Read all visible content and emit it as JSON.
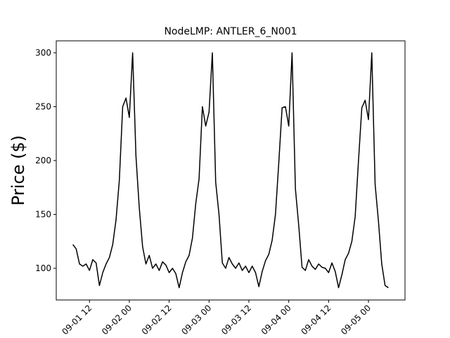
{
  "chart_data": {
    "type": "line",
    "title": "NodeLMP: ANTLER_6_N001",
    "y_label": "Price ($)",
    "x": [
      "09-01 07",
      "09-01 08",
      "09-01 09",
      "09-01 10",
      "09-01 11",
      "09-01 12",
      "09-01 13",
      "09-01 14",
      "09-01 15",
      "09-01 16",
      "09-01 17",
      "09-01 18",
      "09-01 19",
      "09-01 20",
      "09-01 21",
      "09-01 22",
      "09-01 23",
      "09-02 00",
      "09-02 01",
      "09-02 02",
      "09-02 03",
      "09-02 04",
      "09-02 05",
      "09-02 06",
      "09-02 07",
      "09-02 08",
      "09-02 09",
      "09-02 10",
      "09-02 11",
      "09-02 12",
      "09-02 13",
      "09-02 14",
      "09-02 15",
      "09-02 16",
      "09-02 17",
      "09-02 18",
      "09-02 19",
      "09-02 20",
      "09-02 21",
      "09-02 22",
      "09-02 23",
      "09-03 00",
      "09-03 01",
      "09-03 02",
      "09-03 03",
      "09-03 04",
      "09-03 05",
      "09-03 06",
      "09-03 07",
      "09-03 08",
      "09-03 09",
      "09-03 10",
      "09-03 11",
      "09-03 12",
      "09-03 13",
      "09-03 14",
      "09-03 15",
      "09-03 16",
      "09-03 17",
      "09-03 18",
      "09-03 19",
      "09-03 20",
      "09-03 21",
      "09-03 22",
      "09-03 23",
      "09-04 00",
      "09-04 01",
      "09-04 02",
      "09-04 03",
      "09-04 04",
      "09-04 05",
      "09-04 06",
      "09-04 07",
      "09-04 08",
      "09-04 09",
      "09-04 10",
      "09-04 11",
      "09-04 12",
      "09-04 13",
      "09-04 14",
      "09-04 15",
      "09-04 16",
      "09-04 17",
      "09-04 18",
      "09-04 19",
      "09-04 20",
      "09-04 21",
      "09-04 22",
      "09-04 23",
      "09-05 00",
      "09-05 01",
      "09-05 02",
      "09-05 03",
      "09-05 04",
      "09-05 05",
      "09-05 06"
    ],
    "series": [
      {
        "name": "NodeLMP",
        "color": "#000000",
        "values": [
          122,
          118,
          104,
          102,
          104,
          98,
          108,
          105,
          84,
          96,
          104,
          110,
          122,
          145,
          182,
          250,
          258,
          240,
          300,
          204,
          156,
          120,
          104,
          112,
          100,
          104,
          98,
          106,
          103,
          96,
          100,
          95,
          82,
          96,
          106,
          112,
          128,
          160,
          183,
          250,
          232,
          245,
          300,
          180,
          150,
          105,
          100,
          110,
          104,
          100,
          105,
          98,
          102,
          96,
          102,
          96,
          83,
          97,
          107,
          113,
          126,
          150,
          198,
          249,
          250,
          232,
          300,
          174,
          140,
          101,
          98,
          108,
          102,
          99,
          104,
          101,
          100,
          96,
          105,
          97,
          82,
          94,
          108,
          114,
          125,
          148,
          200,
          249,
          256,
          238,
          300,
          178,
          144,
          104,
          84,
          82
        ]
      }
    ],
    "xlim": [
      "09-01 02",
      "09-05 11"
    ],
    "xticks": [
      "09-01 12",
      "09-02 00",
      "09-02 12",
      "09-03 00",
      "09-03 12",
      "09-04 00",
      "09-04 12",
      "09-05 00"
    ],
    "ylim": [
      70.6,
      311.1
    ],
    "yticks": [
      100,
      150,
      200,
      250,
      300
    ],
    "grid": false
  }
}
